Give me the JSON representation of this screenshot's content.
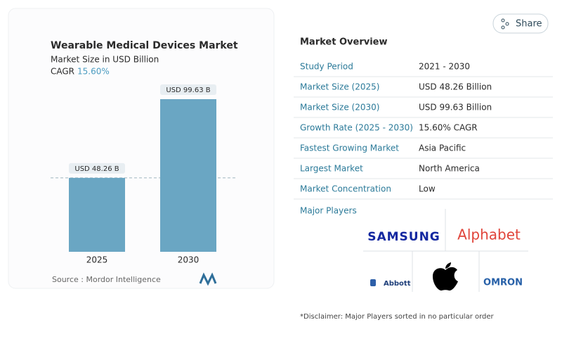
{
  "chart_data": {
    "type": "bar",
    "title": "Wearable Medical Devices Market",
    "subtitle": "Market Size in USD Billion",
    "cagr_label": "CAGR",
    "cagr_value": "15.60%",
    "categories": [
      "2025",
      "2030"
    ],
    "series": [
      {
        "color": "#6aa6c3",
        "values": [
          48.26,
          99.63
        ],
        "value_labels": [
          "USD 48.26 B",
          "USD 99.63 B"
        ]
      }
    ],
    "source": "Source :  Mordor Intelligence"
  },
  "share": "Share",
  "overview": {
    "title": "Market Overview",
    "rows": [
      [
        "Study Period",
        "2021 - 2030"
      ],
      [
        "Market Size (2025)",
        "USD 48.26 Billion"
      ],
      [
        "Market Size (2030)",
        "USD 99.63 Billion"
      ],
      [
        "Growth Rate (2025 - 2030)",
        "15.60% CAGR"
      ],
      [
        "Fastest Growing Market",
        "Asia Pacific"
      ],
      [
        "Largest Market",
        "North America"
      ],
      [
        "Market Concentration",
        "Low"
      ]
    ]
  },
  "major_players": {
    "title": "Major Players",
    "logos": [
      "SAMSUNG",
      "Alphabet",
      "Abbott",
      "OMRON"
    ]
  },
  "disclaimer": "*Disclaimer: Major Players sorted in no particular order"
}
